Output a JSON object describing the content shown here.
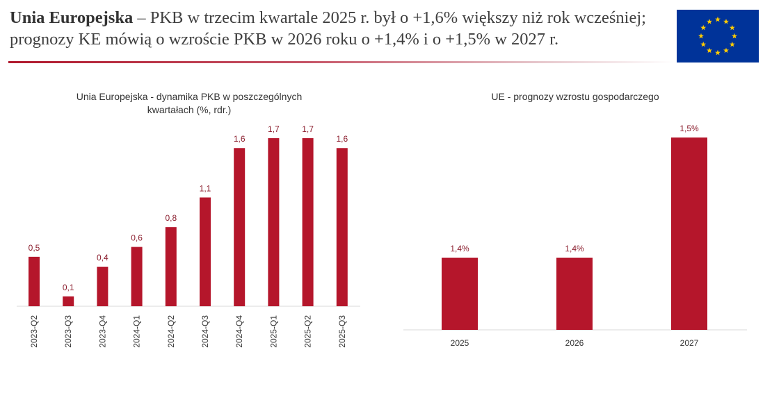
{
  "header": {
    "title_bold": "Unia Europejska",
    "title_rest": " – PKB w trzecim kwartale 2025 r. był o +1,6% większy niż rok wcześniej; prognozy KE mówią o wzroście PKB w 2026 roku o +1,4% i o +1,5% w 2027 r."
  },
  "colors": {
    "bar": "#b5162b",
    "label": "#8a1c2c",
    "flag_blue": "#003399",
    "flag_star": "#ffcc00",
    "rule": "#b0192d"
  },
  "chart_data": [
    {
      "type": "bar",
      "title_lines": [
        "Unia Europejska - dynamika PKB w poszczególnych",
        "kwartałach (%, rdr.)"
      ],
      "categories": [
        "2023-Q2",
        "2023-Q3",
        "2023-Q4",
        "2024-Q1",
        "2024-Q2",
        "2024-Q3",
        "2024-Q4",
        "2025-Q1",
        "2025-Q2",
        "2025-Q3"
      ],
      "values": [
        0.5,
        0.1,
        0.4,
        0.6,
        0.8,
        1.1,
        1.6,
        1.7,
        1.7,
        1.6
      ],
      "data_labels": [
        "0,5",
        "0,1",
        "0,4",
        "0,6",
        "0,8",
        "1,1",
        "1,6",
        "1,7",
        "1,7",
        "1,6"
      ],
      "ylim": [
        0,
        1.7
      ],
      "xlabel": "",
      "ylabel": "",
      "x_tick_rotation": "vertical"
    },
    {
      "type": "bar",
      "title_lines": [
        "UE - prognozy wzrostu gospodarczego"
      ],
      "categories": [
        "2025",
        "2026",
        "2027"
      ],
      "values": [
        1.4,
        1.4,
        1.5
      ],
      "data_labels": [
        "1,4%",
        "1,4%",
        "1,5%"
      ],
      "ylim": [
        1.3,
        1.5
      ],
      "xlabel": "",
      "ylabel": ""
    }
  ]
}
